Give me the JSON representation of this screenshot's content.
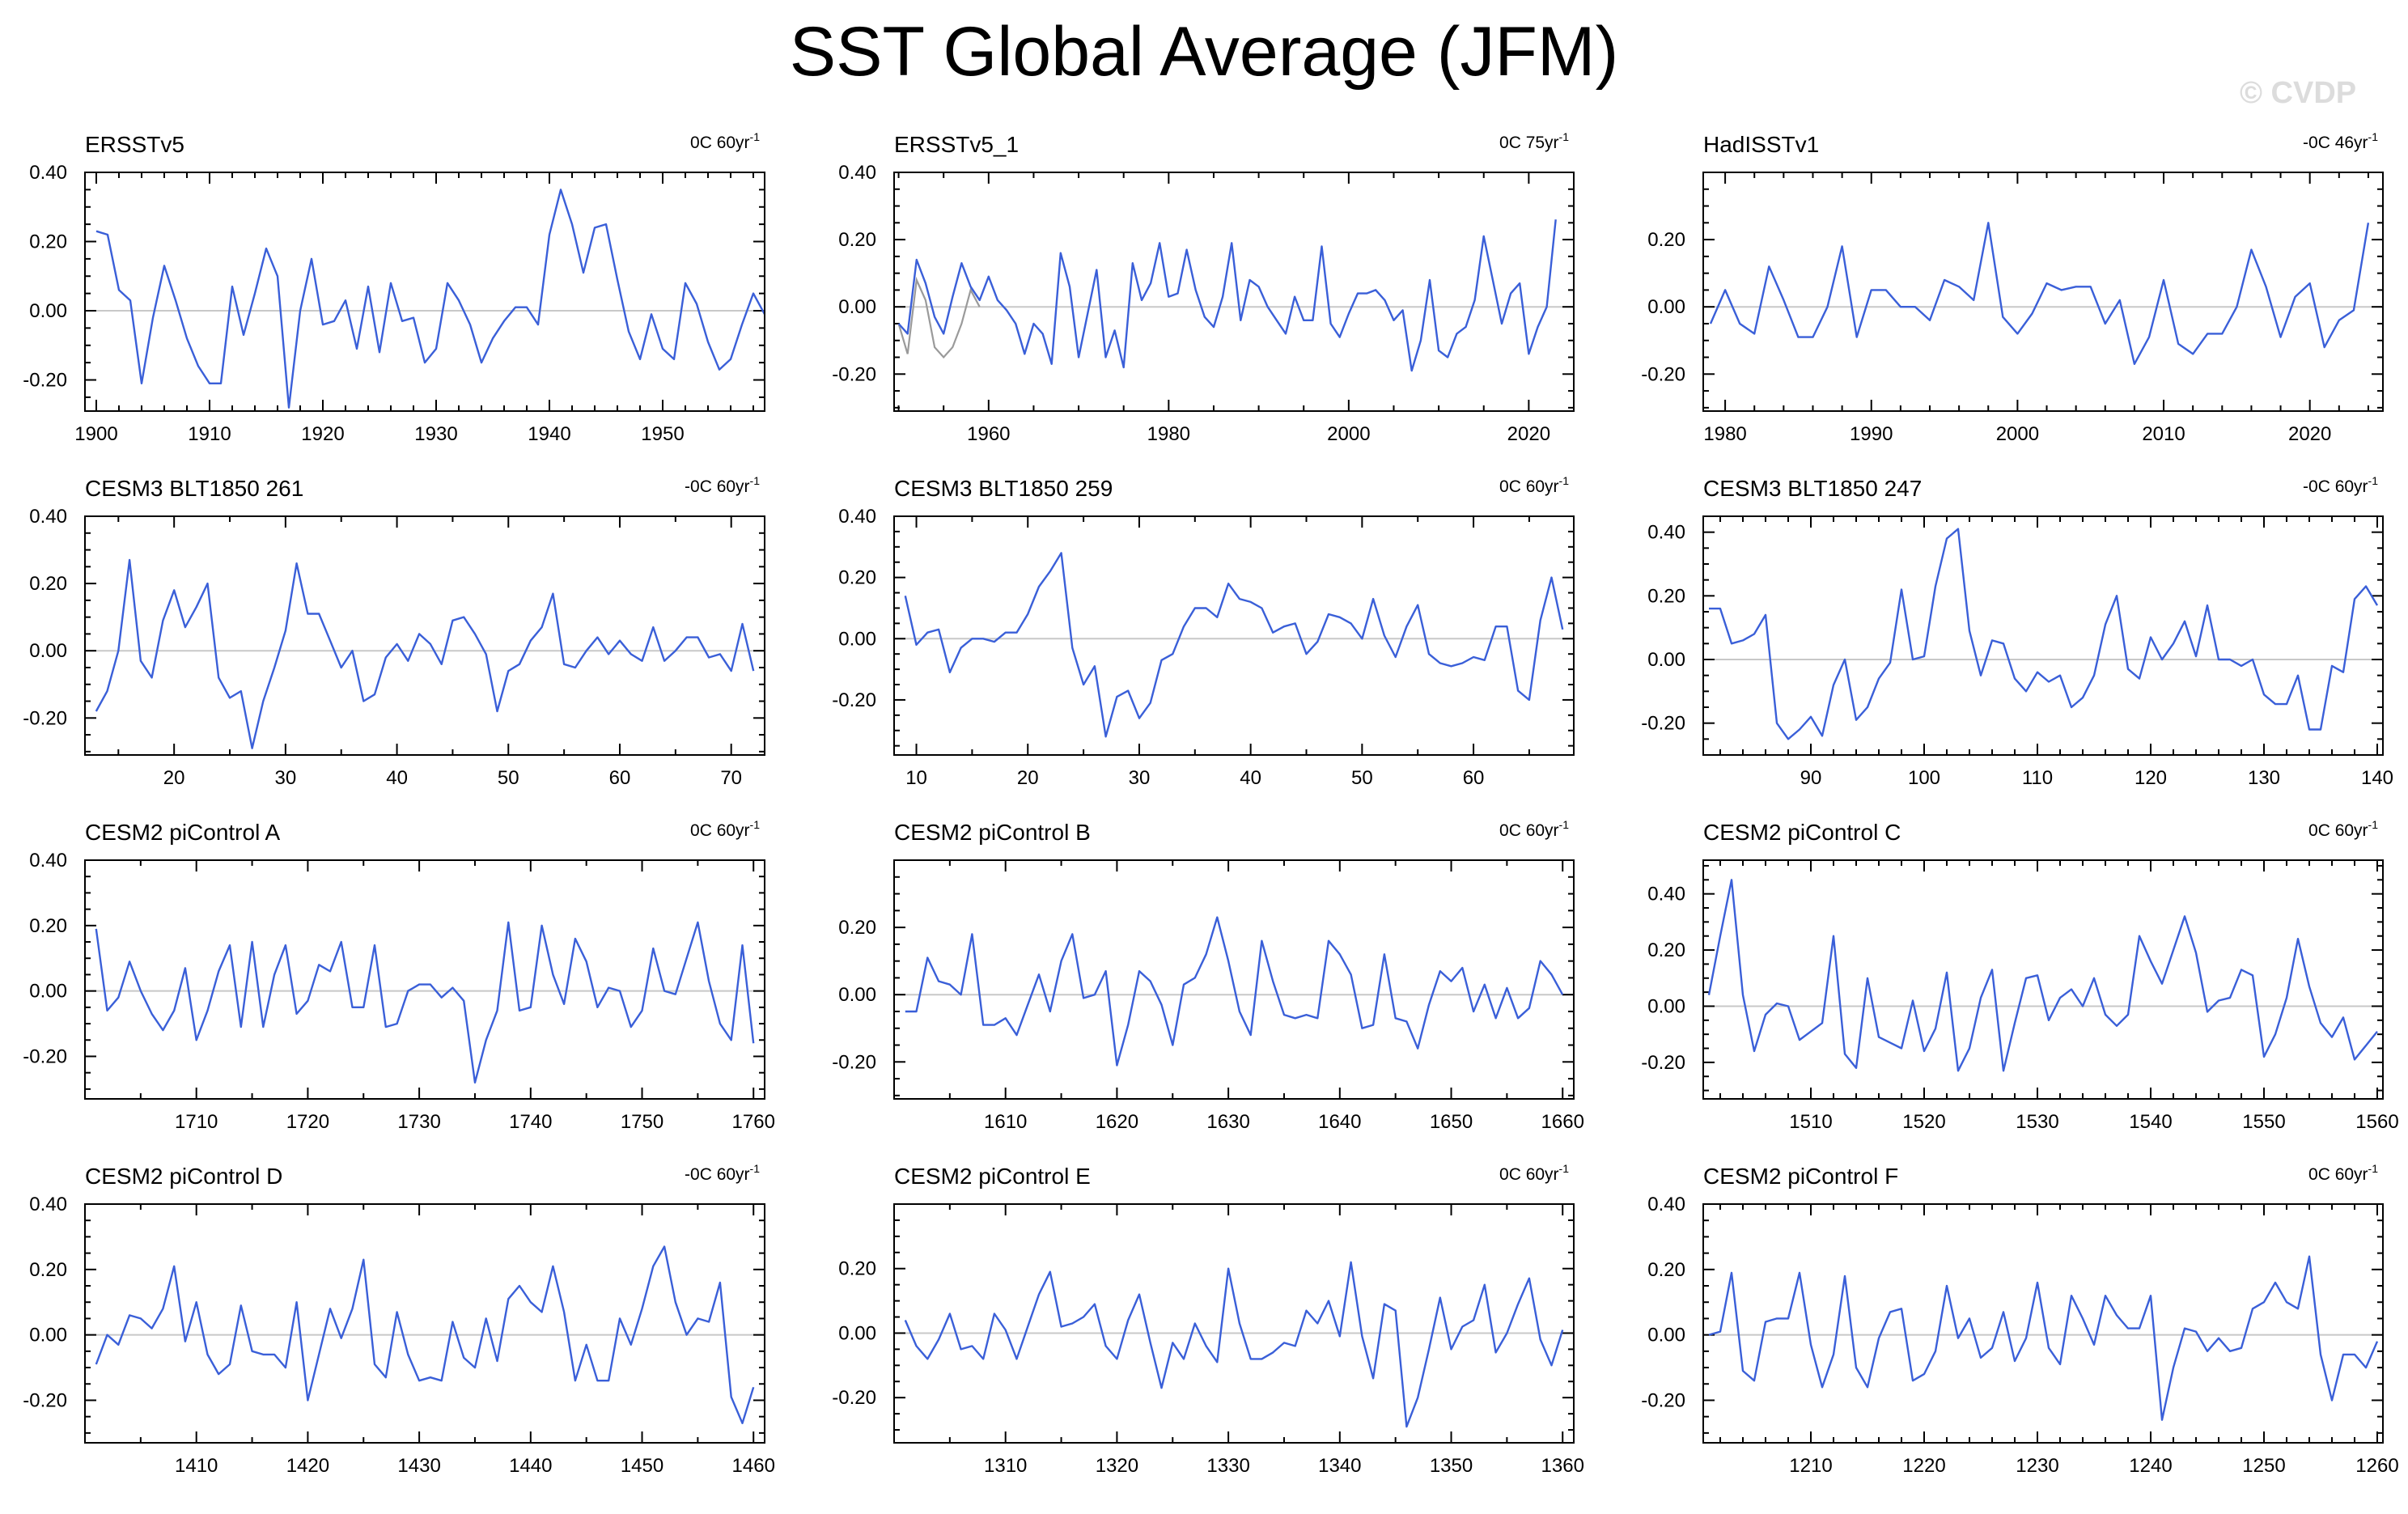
{
  "title": "SST Global Average (JFM)",
  "watermark": "© CVDP",
  "colors": {
    "series": "#3a5fd8",
    "observed_overlay": "#9a9a9a",
    "zero_line": "#c8c8c8",
    "frame": "#000000"
  },
  "chart_data": [
    {
      "type": "line",
      "title": "ERSSTv5",
      "trend": "0C 60yr",
      "trend_unit_sup": "-1",
      "xlim": [
        1899,
        1959
      ],
      "xticks": [
        1900,
        1910,
        1920,
        1930,
        1940,
        1950
      ],
      "ylim": [
        -0.29,
        0.4
      ],
      "yticks": [
        -0.2,
        0.0,
        0.2,
        0.4
      ],
      "ytick_labels": [
        "-0.20",
        "0.00",
        "0.20",
        "0.40"
      ],
      "x_start": 1900,
      "values": [
        0.23,
        0.22,
        0.06,
        0.03,
        -0.21,
        -0.02,
        0.13,
        0.03,
        -0.08,
        -0.16,
        -0.21,
        -0.21,
        0.07,
        -0.07,
        0.05,
        0.18,
        0.1,
        -0.28,
        0.0,
        0.15,
        -0.04,
        -0.03,
        0.03,
        -0.11,
        0.07,
        -0.12,
        0.08,
        -0.03,
        -0.02,
        -0.15,
        -0.11,
        0.08,
        0.03,
        -0.04,
        -0.15,
        -0.08,
        -0.03,
        0.01,
        0.01,
        -0.04,
        0.22,
        0.35,
        0.25,
        0.11,
        0.24,
        0.25,
        0.09,
        -0.06,
        -0.14,
        -0.01,
        -0.11,
        -0.14,
        0.08,
        0.02,
        -0.09,
        -0.17,
        -0.14,
        -0.04,
        0.05,
        -0.01
      ]
    },
    {
      "type": "line",
      "title": "ERSSTv5_1",
      "trend": "0C 75yr",
      "trend_unit_sup": "-1",
      "xlim": [
        1949.5,
        2025
      ],
      "xticks": [
        1960,
        1980,
        2000,
        2020
      ],
      "ylim": [
        -0.31,
        0.4
      ],
      "yticks": [
        -0.2,
        0.0,
        0.2,
        0.4
      ],
      "ytick_labels": [
        "-0.20",
        "0.00",
        "0.20",
        "0.40"
      ],
      "x_start": 1950,
      "values": [
        -0.05,
        -0.08,
        0.14,
        0.07,
        -0.03,
        -0.08,
        0.03,
        0.13,
        0.06,
        0.02,
        0.09,
        0.02,
        -0.01,
        -0.05,
        -0.14,
        -0.05,
        -0.08,
        -0.17,
        0.16,
        0.06,
        -0.15,
        -0.02,
        0.11,
        -0.15,
        -0.07,
        -0.18,
        0.13,
        0.02,
        0.07,
        0.19,
        0.03,
        0.04,
        0.17,
        0.05,
        -0.03,
        -0.06,
        0.03,
        0.19,
        -0.04,
        0.08,
        0.06,
        0.0,
        -0.04,
        -0.08,
        0.03,
        -0.04,
        -0.04,
        0.18,
        -0.05,
        -0.09,
        -0.02,
        0.04,
        0.04,
        0.05,
        0.02,
        -0.04,
        -0.01,
        -0.19,
        -0.1,
        0.08,
        -0.13,
        -0.15,
        -0.08,
        -0.06,
        0.02,
        0.21,
        0.08,
        -0.05,
        0.04,
        0.07,
        -0.14,
        -0.06,
        0.0,
        0.26
      ],
      "overlay": {
        "name": "",
        "x_start": 1950,
        "values": [
          -0.05,
          -0.14,
          0.08,
          0.02,
          -0.12,
          -0.15,
          -0.12,
          -0.05,
          0.05,
          0.0
        ]
      }
    },
    {
      "type": "line",
      "title": "HadISSTv1",
      "trend": "-0C 46yr",
      "trend_unit_sup": "-1",
      "xlim": [
        1978.5,
        2025
      ],
      "xticks": [
        1980,
        1990,
        2000,
        2010,
        2020
      ],
      "ylim": [
        -0.31,
        0.4
      ],
      "yticks": [
        -0.2,
        0.0,
        0.2
      ],
      "ytick_labels": [
        "-0.20",
        "0.00",
        "0.20"
      ],
      "x_start": 1979,
      "values": [
        -0.05,
        0.05,
        -0.05,
        -0.08,
        0.12,
        0.02,
        -0.09,
        -0.09,
        0.0,
        0.18,
        -0.09,
        0.05,
        0.05,
        0.0,
        0.0,
        -0.04,
        0.08,
        0.06,
        0.02,
        0.25,
        -0.03,
        -0.08,
        -0.02,
        0.07,
        0.05,
        0.06,
        0.06,
        -0.05,
        0.02,
        -0.17,
        -0.09,
        0.08,
        -0.11,
        -0.14,
        -0.08,
        -0.08,
        0.0,
        0.17,
        0.06,
        -0.09,
        0.03,
        0.07,
        -0.12,
        -0.04,
        -0.01,
        0.25
      ]
    },
    {
      "type": "line",
      "title": "CESM3 BLT1850 261",
      "trend": "-0C 60yr",
      "trend_unit_sup": "-1",
      "xlim": [
        12,
        73
      ],
      "xticks": [
        20,
        30,
        40,
        50,
        60,
        70
      ],
      "ylim": [
        -0.31,
        0.4
      ],
      "yticks": [
        -0.2,
        0.0,
        0.2,
        0.4
      ],
      "ytick_labels": [
        "-0.20",
        "0.00",
        "0.20",
        "0.40"
      ],
      "x_start": 13,
      "values": [
        -0.18,
        -0.12,
        0.0,
        0.27,
        -0.03,
        -0.08,
        0.09,
        0.18,
        0.07,
        0.13,
        0.2,
        -0.08,
        -0.14,
        -0.12,
        -0.29,
        -0.15,
        -0.05,
        0.06,
        0.26,
        0.11,
        0.11,
        0.03,
        -0.05,
        0.0,
        -0.15,
        -0.13,
        -0.02,
        0.02,
        -0.03,
        0.05,
        0.02,
        -0.04,
        0.09,
        0.1,
        0.05,
        -0.01,
        -0.18,
        -0.06,
        -0.04,
        0.03,
        0.07,
        0.17,
        -0.04,
        -0.05,
        0.0,
        0.04,
        -0.01,
        0.03,
        -0.01,
        -0.03,
        0.07,
        -0.03,
        0.0,
        0.04,
        0.04,
        -0.02,
        -0.01,
        -0.06,
        0.08,
        -0.06
      ]
    },
    {
      "type": "line",
      "title": "CESM3 BLT1850 259",
      "trend": "0C 60yr",
      "trend_unit_sup": "-1",
      "xlim": [
        8,
        69
      ],
      "xticks": [
        10,
        20,
        30,
        40,
        50,
        60
      ],
      "ylim": [
        -0.38,
        0.4
      ],
      "yticks": [
        -0.2,
        0.0,
        0.2,
        0.4
      ],
      "ytick_labels": [
        "-0.20",
        "0.00",
        "0.20",
        "0.40"
      ],
      "x_start": 9,
      "values": [
        0.14,
        -0.02,
        0.02,
        0.03,
        -0.11,
        -0.03,
        0.0,
        0.0,
        -0.01,
        0.02,
        0.02,
        0.08,
        0.17,
        0.22,
        0.28,
        -0.03,
        -0.15,
        -0.09,
        -0.32,
        -0.19,
        -0.17,
        -0.26,
        -0.21,
        -0.07,
        -0.05,
        0.04,
        0.1,
        0.1,
        0.07,
        0.18,
        0.13,
        0.12,
        0.1,
        0.02,
        0.04,
        0.05,
        -0.05,
        -0.01,
        0.08,
        0.07,
        0.05,
        0.0,
        0.13,
        0.01,
        -0.06,
        0.04,
        0.11,
        -0.05,
        -0.08,
        -0.09,
        -0.08,
        -0.06,
        -0.07,
        0.04,
        0.04,
        -0.17,
        -0.2,
        0.06,
        0.2,
        0.03
      ]
    },
    {
      "type": "line",
      "title": "CESM3 BLT1850 247",
      "trend": "-0C 60yr",
      "trend_unit_sup": "-1",
      "xlim": [
        80.5,
        140.5
      ],
      "xticks": [
        90,
        100,
        110,
        120,
        130,
        140
      ],
      "ylim": [
        -0.3,
        0.45
      ],
      "yticks": [
        -0.2,
        0.0,
        0.2,
        0.4
      ],
      "ytick_labels": [
        "-0.20",
        "0.00",
        "0.20",
        "0.40"
      ],
      "x_start": 81,
      "values": [
        0.16,
        0.16,
        0.05,
        0.06,
        0.08,
        0.14,
        -0.2,
        -0.25,
        -0.22,
        -0.18,
        -0.24,
        -0.08,
        0.0,
        -0.19,
        -0.15,
        -0.06,
        -0.01,
        0.22,
        0.0,
        0.01,
        0.23,
        0.38,
        0.41,
        0.09,
        -0.05,
        0.06,
        0.05,
        -0.06,
        -0.1,
        -0.04,
        -0.07,
        -0.05,
        -0.15,
        -0.12,
        -0.05,
        0.11,
        0.2,
        -0.03,
        -0.06,
        0.07,
        0.0,
        0.05,
        0.12,
        0.01,
        0.17,
        0.0,
        0.0,
        -0.02,
        0.0,
        -0.11,
        -0.14,
        -0.14,
        -0.05,
        -0.22,
        -0.22,
        -0.02,
        -0.04,
        0.19,
        0.23,
        0.17
      ]
    },
    {
      "type": "line",
      "title": "CESM2 piControl A",
      "trend": "0C 60yr",
      "trend_unit_sup": "-1",
      "xlim": [
        1700,
        1761
      ],
      "xticks": [
        1710,
        1720,
        1730,
        1740,
        1750,
        1760
      ],
      "ylim": [
        -0.33,
        0.4
      ],
      "yticks": [
        -0.2,
        0.0,
        0.2,
        0.4
      ],
      "ytick_labels": [
        "-0.20",
        "0.00",
        "0.20",
        "0.40"
      ],
      "x_start": 1701,
      "values": [
        0.19,
        -0.06,
        -0.02,
        0.09,
        0.0,
        -0.07,
        -0.12,
        -0.06,
        0.07,
        -0.15,
        -0.06,
        0.06,
        0.14,
        -0.11,
        0.15,
        -0.11,
        0.05,
        0.14,
        -0.07,
        -0.03,
        0.08,
        0.06,
        0.15,
        -0.05,
        -0.05,
        0.14,
        -0.11,
        -0.1,
        0.0,
        0.02,
        0.02,
        -0.02,
        0.01,
        -0.03,
        -0.28,
        -0.15,
        -0.06,
        0.21,
        -0.06,
        -0.05,
        0.2,
        0.05,
        -0.04,
        0.16,
        0.09,
        -0.05,
        0.01,
        0.0,
        -0.11,
        -0.06,
        0.13,
        0.0,
        -0.01,
        0.1,
        0.21,
        0.03,
        -0.1,
        -0.15,
        0.14,
        -0.16
      ]
    },
    {
      "type": "line",
      "title": "CESM2 piControl B",
      "trend": "0C 60yr",
      "trend_unit_sup": "-1",
      "xlim": [
        1600,
        1661
      ],
      "xticks": [
        1610,
        1620,
        1630,
        1640,
        1650,
        1660
      ],
      "ylim": [
        -0.31,
        0.4
      ],
      "yticks": [
        -0.2,
        0.0,
        0.2
      ],
      "ytick_labels": [
        "-0.20",
        "0.00",
        "0.20"
      ],
      "x_start": 1601,
      "values": [
        -0.05,
        -0.05,
        0.11,
        0.04,
        0.03,
        0.0,
        0.18,
        -0.09,
        -0.09,
        -0.07,
        -0.12,
        -0.03,
        0.06,
        -0.05,
        0.1,
        0.18,
        -0.01,
        0.0,
        0.07,
        -0.21,
        -0.09,
        0.07,
        0.04,
        -0.03,
        -0.15,
        0.03,
        0.05,
        0.12,
        0.23,
        0.1,
        -0.05,
        -0.12,
        0.16,
        0.04,
        -0.06,
        -0.07,
        -0.06,
        -0.07,
        0.16,
        0.12,
        0.06,
        -0.1,
        -0.09,
        0.12,
        -0.07,
        -0.08,
        -0.16,
        -0.03,
        0.07,
        0.04,
        0.08,
        -0.05,
        0.03,
        -0.07,
        0.02,
        -0.07,
        -0.04,
        0.1,
        0.06,
        0.0
      ]
    },
    {
      "type": "line",
      "title": "CESM2 piControl C",
      "trend": "0C 60yr",
      "trend_unit_sup": "-1",
      "xlim": [
        1500.5,
        1560.5
      ],
      "xticks": [
        1510,
        1520,
        1530,
        1540,
        1550,
        1560
      ],
      "ylim": [
        -0.33,
        0.52
      ],
      "yticks": [
        -0.2,
        0.0,
        0.2,
        0.4
      ],
      "ytick_labels": [
        "-0.20",
        "0.00",
        "0.20",
        "0.40"
      ],
      "x_start": 1501,
      "values": [
        0.04,
        0.25,
        0.45,
        0.04,
        -0.16,
        -0.03,
        0.01,
        0.0,
        -0.12,
        -0.09,
        -0.06,
        0.25,
        -0.17,
        -0.22,
        0.1,
        -0.11,
        -0.13,
        -0.15,
        0.02,
        -0.16,
        -0.08,
        0.12,
        -0.23,
        -0.15,
        0.03,
        0.13,
        -0.23,
        -0.06,
        0.1,
        0.11,
        -0.05,
        0.03,
        0.06,
        0.0,
        0.1,
        -0.03,
        -0.07,
        -0.03,
        0.25,
        0.16,
        0.08,
        0.2,
        0.32,
        0.19,
        -0.02,
        0.02,
        0.03,
        0.13,
        0.11,
        -0.18,
        -0.1,
        0.03,
        0.24,
        0.07,
        -0.06,
        -0.11,
        -0.04,
        -0.19,
        -0.14,
        -0.09
      ]
    },
    {
      "type": "line",
      "title": "CESM2 piControl D",
      "trend": "-0C 60yr",
      "trend_unit_sup": "-1",
      "xlim": [
        1400,
        1461
      ],
      "xticks": [
        1410,
        1420,
        1430,
        1440,
        1450,
        1460
      ],
      "ylim": [
        -0.33,
        0.4
      ],
      "yticks": [
        -0.2,
        0.0,
        0.2,
        0.4
      ],
      "ytick_labels": [
        "-0.20",
        "0.00",
        "0.20",
        "0.40"
      ],
      "x_start": 1401,
      "values": [
        -0.09,
        0.0,
        -0.03,
        0.06,
        0.05,
        0.02,
        0.08,
        0.21,
        -0.02,
        0.1,
        -0.06,
        -0.12,
        -0.09,
        0.09,
        -0.05,
        -0.06,
        -0.06,
        -0.1,
        0.1,
        -0.2,
        -0.06,
        0.08,
        -0.01,
        0.08,
        0.23,
        -0.09,
        -0.13,
        0.07,
        -0.06,
        -0.14,
        -0.13,
        -0.14,
        0.04,
        -0.07,
        -0.1,
        0.05,
        -0.08,
        0.11,
        0.15,
        0.1,
        0.07,
        0.21,
        0.07,
        -0.14,
        -0.03,
        -0.14,
        -0.14,
        0.05,
        -0.03,
        0.08,
        0.21,
        0.27,
        0.1,
        0.0,
        0.05,
        0.04,
        0.16,
        -0.19,
        -0.27,
        -0.16
      ]
    },
    {
      "type": "line",
      "title": "CESM2 piControl E",
      "trend": "0C 60yr",
      "trend_unit_sup": "-1",
      "xlim": [
        1300,
        1361
      ],
      "xticks": [
        1310,
        1320,
        1330,
        1340,
        1350,
        1360
      ],
      "ylim": [
        -0.34,
        0.4
      ],
      "yticks": [
        -0.2,
        0.0,
        0.2
      ],
      "ytick_labels": [
        "-0.20",
        "0.00",
        "0.20"
      ],
      "x_start": 1301,
      "values": [
        0.04,
        -0.04,
        -0.08,
        -0.02,
        0.06,
        -0.05,
        -0.04,
        -0.08,
        0.06,
        0.01,
        -0.08,
        0.02,
        0.12,
        0.19,
        0.02,
        0.03,
        0.05,
        0.09,
        -0.04,
        -0.08,
        0.04,
        0.12,
        -0.03,
        -0.17,
        -0.03,
        -0.08,
        0.03,
        -0.04,
        -0.09,
        0.2,
        0.03,
        -0.08,
        -0.08,
        -0.06,
        -0.03,
        -0.04,
        0.07,
        0.03,
        0.1,
        -0.01,
        0.22,
        -0.01,
        -0.14,
        0.09,
        0.07,
        -0.29,
        -0.2,
        -0.05,
        0.11,
        -0.05,
        0.02,
        0.04,
        0.15,
        -0.06,
        0.0,
        0.09,
        0.17,
        -0.02,
        -0.1,
        0.01
      ]
    },
    {
      "type": "line",
      "title": "CESM2 piControl F",
      "trend": "0C 60yr",
      "trend_unit_sup": "-1",
      "xlim": [
        1200.5,
        1260.5
      ],
      "xticks": [
        1210,
        1220,
        1230,
        1240,
        1250,
        1260
      ],
      "ylim": [
        -0.33,
        0.4
      ],
      "yticks": [
        -0.2,
        0.0,
        0.2,
        0.4
      ],
      "ytick_labels": [
        "-0.20",
        "0.00",
        "0.20",
        "0.40"
      ],
      "x_start": 1201,
      "values": [
        0.0,
        0.01,
        0.19,
        -0.11,
        -0.14,
        0.04,
        0.05,
        0.05,
        0.19,
        -0.03,
        -0.16,
        -0.06,
        0.18,
        -0.1,
        -0.16,
        -0.01,
        0.07,
        0.08,
        -0.14,
        -0.12,
        -0.05,
        0.15,
        -0.01,
        0.05,
        -0.07,
        -0.04,
        0.07,
        -0.08,
        -0.01,
        0.16,
        -0.04,
        -0.09,
        0.12,
        0.05,
        -0.03,
        0.12,
        0.06,
        0.02,
        0.02,
        0.12,
        -0.26,
        -0.1,
        0.02,
        0.01,
        -0.05,
        -0.01,
        -0.05,
        -0.04,
        0.08,
        0.1,
        0.16,
        0.1,
        0.08,
        0.24,
        -0.06,
        -0.2,
        -0.06,
        -0.06,
        -0.1,
        -0.02
      ]
    }
  ]
}
